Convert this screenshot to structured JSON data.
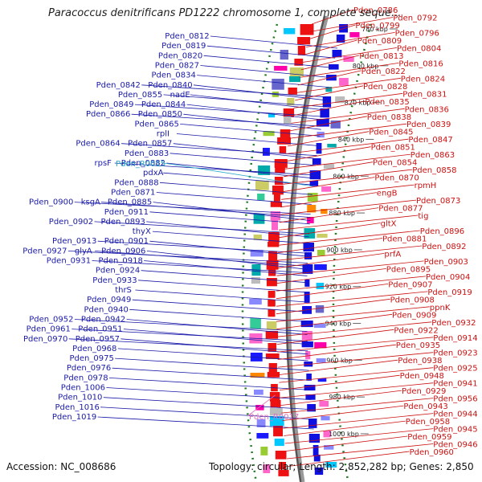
{
  "title": "Paracoccus denitrificans PD1222 chromosome 1, complete seque...",
  "footer": {
    "accession": "Accession: NC_008686",
    "summary": "Topology: circular; Length: 2,852,282 bp; Genes: 2,850"
  },
  "colors": {
    "left_label": "#1a1aa8",
    "right_label": "#cc1111",
    "rna_label_left": "#2aa8c8",
    "rna_label_right": "#e070c0",
    "backbone": "#999999",
    "tick": "#1f7a1f"
  },
  "kbp_ticks": [
    "780 kbp",
    "800 kbp",
    "820 kbp",
    "840 kbp",
    "860 kbp",
    "880 kbp",
    "900 kbp",
    "920 kbp",
    "940 kbp",
    "960 kbp",
    "980 kbp",
    "1000 kbp"
  ],
  "left_labels": [
    [
      "Pden_0812"
    ],
    [
      "Pden_0819"
    ],
    [
      "Pden_0820"
    ],
    [
      "Pden_0827"
    ],
    [
      "Pden_0834"
    ],
    [
      "Pden_0842",
      "Pden_0840"
    ],
    [
      "Pden_0855",
      "nadE"
    ],
    [
      "Pden_0849",
      "Pden_0844"
    ],
    [
      "Pden_0866",
      "Pden_0850"
    ],
    [
      "Pden_0865"
    ],
    [
      "rplI"
    ],
    [
      "Pden_0864",
      "Pden_0857"
    ],
    [
      "Pden_0883"
    ],
    [
      "rpsF",
      "Pden_0882"
    ],
    [
      "pdxA"
    ],
    [
      "Pden_0888"
    ],
    [
      "Pden_0871"
    ],
    [
      "Pden_0900",
      "ksgA",
      "Pden_0885"
    ],
    [
      "Pden_0911"
    ],
    [
      "Pden_0902",
      "Pden_0893"
    ],
    [
      "thyX"
    ],
    [
      "Pden_0913",
      "Pden_0901"
    ],
    [
      "Pden_0927",
      "glyA",
      "Pden_0906"
    ],
    [
      "Pden_0931",
      "Pden_0918"
    ],
    [
      "Pden_0924"
    ],
    [
      "Pden_0933"
    ],
    [
      "thrS"
    ],
    [
      "Pden_0949"
    ],
    [
      "Pden_0940"
    ],
    [
      "Pden_0952",
      "Pden_0942"
    ],
    [
      "Pden_0961",
      "Pden_0951"
    ],
    [
      "Pden_0970",
      "Pden_0957"
    ],
    [
      "Pden_0968"
    ],
    [
      "Pden_0975"
    ],
    [
      "Pden_0976"
    ],
    [
      "Pden_0978"
    ],
    [
      "Pden_1006"
    ],
    [
      "Pden_1010"
    ],
    [
      "Pden_1016"
    ],
    [
      "Pden_1019"
    ]
  ],
  "rna_left": "Pden_R0015",
  "rna_right": "Pden_R0017",
  "right_labels": [
    "Pden_0786",
    "Pden_0792",
    "Pden_0799",
    "Pden_0796",
    "Pden_0809",
    "Pden_0804",
    "Pden_0813",
    "Pden_0816",
    "Pden_0822",
    "Pden_0824",
    "Pden_0828",
    "Pden_0831",
    "Pden_0835",
    "Pden_0836",
    "Pden_0838",
    "Pden_0839",
    "Pden_0845",
    "Pden_0847",
    "Pden_0851",
    "Pden_0863",
    "Pden_0854",
    "Pden_0858",
    "Pden_0870",
    "rpmH",
    "engB",
    "Pden_0873",
    "Pden_0877",
    "tig",
    "gltX",
    "Pden_0896",
    "Pden_0881",
    "Pden_0892",
    "prfA",
    "Pden_0903",
    "Pden_0895",
    "Pden_0904",
    "Pden_0907",
    "Pden_0919",
    "Pden_0908",
    "ppnK",
    "Pden_0909",
    "Pden_0932",
    "Pden_0922",
    "Pden_0914",
    "Pden_0935",
    "Pden_0923",
    "Pden_0938",
    "Pden_0925",
    "Pden_0948",
    "Pden_0941",
    "Pden_0929",
    "Pden_0956",
    "Pden_0943",
    "Pden_0944",
    "Pden_0958",
    "Pden_0945",
    "Pden_0959",
    "Pden_0946",
    "Pden_0960"
  ]
}
